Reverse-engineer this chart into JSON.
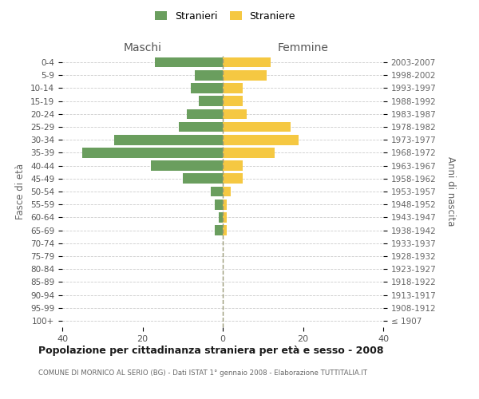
{
  "age_groups": [
    "100+",
    "95-99",
    "90-94",
    "85-89",
    "80-84",
    "75-79",
    "70-74",
    "65-69",
    "60-64",
    "55-59",
    "50-54",
    "45-49",
    "40-44",
    "35-39",
    "30-34",
    "25-29",
    "20-24",
    "15-19",
    "10-14",
    "5-9",
    "0-4"
  ],
  "birth_years": [
    "≤ 1907",
    "1908-1912",
    "1913-1917",
    "1918-1922",
    "1923-1927",
    "1928-1932",
    "1933-1937",
    "1938-1942",
    "1943-1947",
    "1948-1952",
    "1953-1957",
    "1958-1962",
    "1963-1967",
    "1968-1972",
    "1973-1977",
    "1978-1982",
    "1983-1987",
    "1988-1992",
    "1993-1997",
    "1998-2002",
    "2003-2007"
  ],
  "maschi": [
    0,
    0,
    0,
    0,
    0,
    0,
    0,
    2,
    1,
    2,
    3,
    10,
    18,
    35,
    27,
    11,
    9,
    6,
    8,
    7,
    17
  ],
  "femmine": [
    0,
    0,
    0,
    0,
    0,
    0,
    0,
    1,
    1,
    1,
    2,
    5,
    5,
    13,
    19,
    17,
    6,
    5,
    5,
    11,
    12
  ],
  "male_color": "#6a9e5e",
  "female_color": "#f5c842",
  "background_color": "#ffffff",
  "grid_color": "#cccccc",
  "title": "Popolazione per cittadinanza straniera per età e sesso - 2008",
  "subtitle": "COMUNE DI MORNICO AL SERIO (BG) - Dati ISTAT 1° gennaio 2008 - Elaborazione TUTTITALIA.IT",
  "maschi_label": "Maschi",
  "femmine_label": "Femmine",
  "ylabel_left": "Fasce di età",
  "ylabel_right": "Anni di nascita",
  "legend_male": "Stranieri",
  "legend_female": "Straniere",
  "xlim": 40,
  "center_line_color": "#999977"
}
